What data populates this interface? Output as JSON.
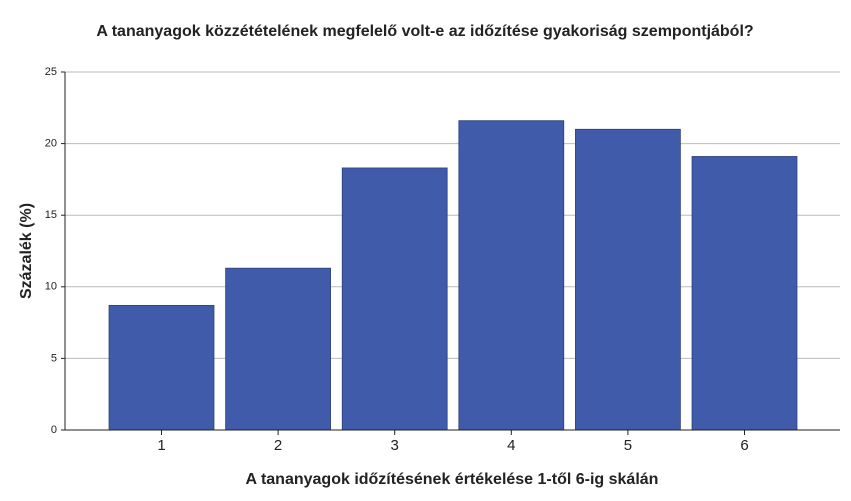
{
  "chart_data": {
    "type": "bar",
    "title": "A tananyagok közzétételének megfelelő volt-e az időzítése gyakoriság szempontjából?",
    "xlabel": "A tananyagok időzítésének értékelése 1-től 6-ig skálán",
    "ylabel": "Százalék (%)",
    "categories": [
      "1",
      "2",
      "3",
      "4",
      "5",
      "6"
    ],
    "values": [
      8.7,
      11.3,
      18.3,
      21.6,
      21.0,
      19.1
    ],
    "color": "#3f5ba9",
    "ylim": [
      0,
      25
    ],
    "yticks": [
      0,
      5,
      10,
      15,
      20,
      25
    ],
    "grid": true
  }
}
